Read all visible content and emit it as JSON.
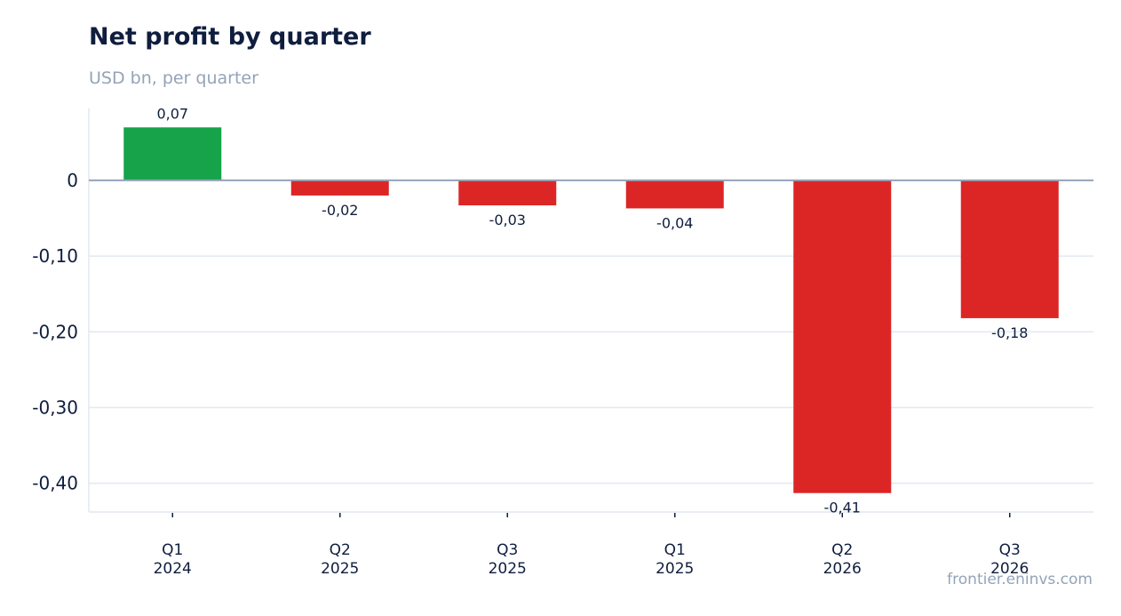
{
  "chart_data": {
    "type": "bar",
    "title": "Net profit by quarter",
    "subtitle": "USD bn, per quarter",
    "categories": [
      [
        "Q1",
        "2024"
      ],
      [
        "Q2",
        "2025"
      ],
      [
        "Q3",
        "2025"
      ],
      [
        "Q1",
        "2025"
      ],
      [
        "Q2",
        "2026"
      ],
      [
        "Q3",
        "2026"
      ]
    ],
    "values": [
      0.07,
      -0.02,
      -0.033,
      -0.037,
      -0.413,
      -0.182
    ],
    "data_labels": [
      "0,07",
      "-0,02",
      "-0,03",
      "-0,04",
      "-0,41",
      "-0,18"
    ],
    "yticks": [
      0,
      -0.1,
      -0.2,
      -0.3,
      -0.4
    ],
    "ytick_labels": [
      "0",
      "-0,10",
      "-0,20",
      "-0,30",
      "-0,40"
    ],
    "ylim": [
      -0.438,
      0.095
    ],
    "grid": true,
    "legend": "none",
    "colors": {
      "positive": "#16a34a",
      "negative": "#dc2626",
      "zero_line": "#94a3b8",
      "grid": "#e2e8f0",
      "axis": "#e2e8f0"
    }
  },
  "source": "frontier.eninvs.com"
}
